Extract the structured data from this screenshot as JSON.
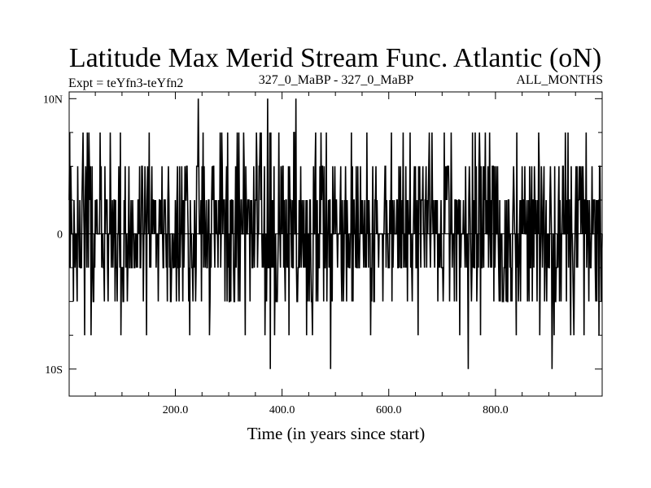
{
  "chart_data": {
    "type": "line",
    "title": "Latitude Max Merid Stream Func. Atlantic (oN)",
    "subtitle_left": "Expt = teYfn3-teYfn2",
    "subtitle_center": "327_0_MaBP - 327_0_MaBP",
    "subtitle_right": "ALL_MONTHS",
    "xlabel": "Time (in years since start)",
    "ylabel": "",
    "xlim": [
      1,
      1000
    ],
    "ylim": [
      -12,
      10.5
    ],
    "x_ticks": [
      {
        "value": 200,
        "label": "200.0"
      },
      {
        "value": 400,
        "label": "400.0"
      },
      {
        "value": 600,
        "label": "600.0"
      },
      {
        "value": 800,
        "label": "800.0"
      }
    ],
    "x_minor_ticks": [
      50,
      100,
      150,
      250,
      300,
      350,
      450,
      500,
      550,
      650,
      700,
      750,
      850,
      900,
      950
    ],
    "y_ticks": [
      {
        "value": 10,
        "label": "10N"
      },
      {
        "value": 0,
        "label": "0"
      },
      {
        "value": -10,
        "label": "10S"
      }
    ],
    "y_minor_ticks": [
      -7.5,
      -5,
      -2.5,
      2.5,
      5,
      7.5
    ],
    "grid": false,
    "series": [
      {
        "name": "teYfn3-teYfn2",
        "step": 2.5,
        "x_start": 1,
        "x_end": 1000,
        "seed": 327,
        "extremes": [
          {
            "x": 243,
            "y": 10
          },
          {
            "x": 373,
            "y": 10
          },
          {
            "x": 426,
            "y": 10
          },
          {
            "x": 378,
            "y": -10
          },
          {
            "x": 491,
            "y": -10
          },
          {
            "x": 749,
            "y": -10
          },
          {
            "x": 906,
            "y": -10
          }
        ]
      }
    ]
  }
}
